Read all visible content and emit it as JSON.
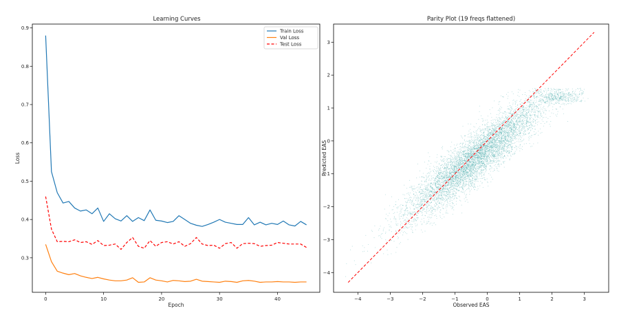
{
  "chart_data": [
    {
      "type": "line",
      "title": "Learning Curves",
      "xlabel": "Epoch",
      "ylabel": "Loss",
      "xlim": [
        -2.3,
        47.3
      ],
      "ylim": [
        0.21,
        0.91
      ],
      "xticks": [
        0,
        10,
        20,
        30,
        40
      ],
      "yticks": [
        0.3,
        0.4,
        0.5,
        0.6,
        0.7,
        0.8,
        0.9
      ],
      "grid": false,
      "legend_position": "top-right",
      "x": [
        0,
        1,
        2,
        3,
        4,
        5,
        6,
        7,
        8,
        9,
        10,
        11,
        12,
        13,
        14,
        15,
        16,
        17,
        18,
        19,
        20,
        21,
        22,
        23,
        24,
        25,
        26,
        27,
        28,
        29,
        30,
        31,
        32,
        33,
        34,
        35,
        36,
        37,
        38,
        39,
        40,
        41,
        42,
        43,
        44,
        45
      ],
      "series": [
        {
          "name": "Train Loss",
          "color": "#1f77b4",
          "dash": "solid",
          "values": [
            0.88,
            0.525,
            0.47,
            0.443,
            0.447,
            0.43,
            0.422,
            0.425,
            0.415,
            0.43,
            0.395,
            0.415,
            0.402,
            0.396,
            0.41,
            0.395,
            0.405,
            0.397,
            0.425,
            0.398,
            0.396,
            0.392,
            0.395,
            0.41,
            0.4,
            0.39,
            0.385,
            0.382,
            0.387,
            0.393,
            0.4,
            0.393,
            0.39,
            0.387,
            0.387,
            0.405,
            0.386,
            0.393,
            0.386,
            0.39,
            0.387,
            0.396,
            0.386,
            0.383,
            0.395,
            0.386
          ]
        },
        {
          "name": "Val Loss",
          "color": "#ff7f0e",
          "dash": "solid",
          "values": [
            0.335,
            0.29,
            0.265,
            0.26,
            0.256,
            0.259,
            0.253,
            0.249,
            0.246,
            0.249,
            0.245,
            0.242,
            0.24,
            0.24,
            0.242,
            0.248,
            0.236,
            0.237,
            0.248,
            0.242,
            0.24,
            0.237,
            0.241,
            0.24,
            0.238,
            0.239,
            0.244,
            0.239,
            0.238,
            0.237,
            0.236,
            0.239,
            0.238,
            0.236,
            0.24,
            0.241,
            0.239,
            0.236,
            0.237,
            0.237,
            0.238,
            0.237,
            0.237,
            0.236,
            0.237,
            0.237
          ]
        },
        {
          "name": "Test Loss",
          "color": "#ff0000",
          "dash": "dashed",
          "values": [
            0.46,
            0.375,
            0.342,
            0.343,
            0.342,
            0.347,
            0.34,
            0.342,
            0.335,
            0.345,
            0.332,
            0.333,
            0.336,
            0.322,
            0.34,
            0.353,
            0.33,
            0.325,
            0.345,
            0.33,
            0.34,
            0.342,
            0.336,
            0.342,
            0.33,
            0.337,
            0.353,
            0.336,
            0.332,
            0.333,
            0.325,
            0.337,
            0.34,
            0.325,
            0.337,
            0.338,
            0.337,
            0.33,
            0.332,
            0.333,
            0.34,
            0.338,
            0.336,
            0.336,
            0.336,
            0.327
          ]
        }
      ]
    },
    {
      "type": "scatter",
      "title": "Parity Plot (19 freqs flattened)",
      "xlabel": "Observed EAS",
      "ylabel": "Predicted EAS",
      "xlim": [
        -4.75,
        3.75
      ],
      "ylim": [
        -4.6,
        3.55
      ],
      "xticks": [
        -4,
        -3,
        -2,
        -1,
        0,
        1,
        2,
        3
      ],
      "yticks": [
        -4,
        -3,
        -2,
        -1,
        0,
        1,
        2,
        3
      ],
      "grid": false,
      "point_color": "#2a9d9f",
      "n_points": 7000,
      "point_cloud": {
        "x_mean": -0.35,
        "x_std": 1.12,
        "slope": 0.78,
        "intercept": -0.22,
        "residual_std": 0.38,
        "cluster_center": [
          2.2,
          1.3
        ],
        "cluster_fraction": 0.05
      },
      "reference_line": {
        "style": "dashed",
        "color": "#ff0000",
        "from": [
          -4.3,
          -4.3
        ],
        "to": [
          3.3,
          3.3
        ]
      }
    }
  ]
}
